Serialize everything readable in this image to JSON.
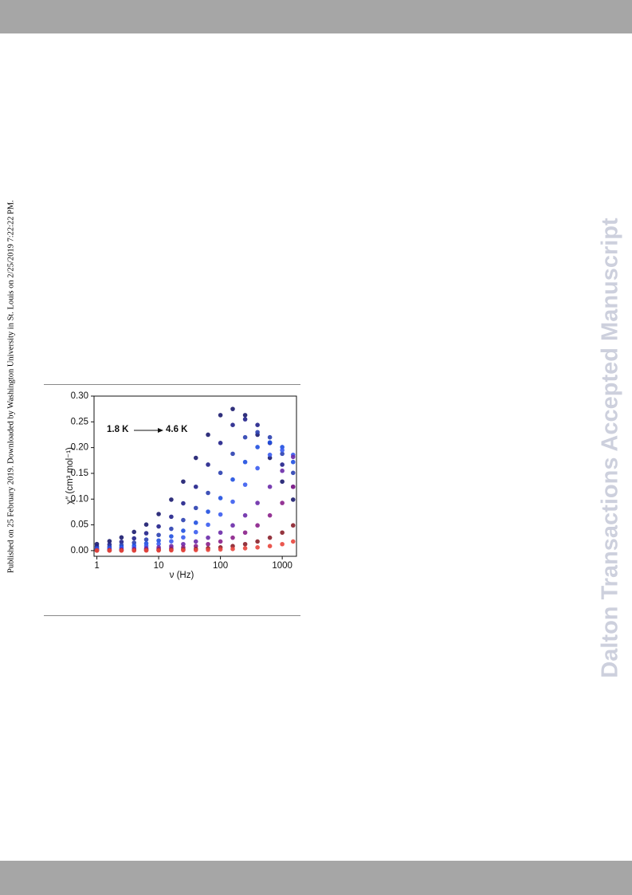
{
  "side_note": "Published on 25 February 2019. Downloaded by Washington University in St. Louis on 2/25/2019 7:22:22 PM.",
  "watermark": "Dalton Transactions Accepted Manuscript",
  "chart_data": {
    "type": "scatter",
    "xscale": "log",
    "x_label": "ν (Hz)",
    "y_label": "χ″ (cm³ mol⁻¹)",
    "annotation_start": "1.8 K",
    "annotation_end": "4.6 K",
    "annotation_start_color": "#1a1a7a",
    "annotation_end_color": "#e8553c",
    "xlim": [
      0.9,
      1700
    ],
    "xticks": [
      1,
      10,
      100,
      1000
    ],
    "ylim": [
      -0.011,
      0.3
    ],
    "yticks": [
      {
        "value": 0,
        "label": "0.00"
      },
      {
        "value": 0.05,
        "label": "0.05"
      },
      {
        "value": 0.1,
        "label": "0.10"
      },
      {
        "value": 0.15,
        "label": "0.15"
      },
      {
        "value": 0.2,
        "label": "0.20"
      },
      {
        "value": 0.25,
        "label": "0.25"
      },
      {
        "value": 0.3,
        "label": "0.30"
      }
    ],
    "x": [
      1,
      1.6,
      2.5,
      4,
      6.3,
      10,
      16,
      25,
      40,
      63,
      100,
      158,
      251,
      398,
      631,
      1000,
      1500
    ],
    "series": [
      {
        "color": "#1a1a6e",
        "values": [
          0.0128,
          0.0183,
          0.0256,
          0.0363,
          0.0506,
          0.071,
          0.099,
          0.134,
          0.18,
          0.225,
          0.263,
          0.275,
          0.263,
          0.225,
          0.18,
          0.134,
          0.099
        ]
      },
      {
        "color": "#20208a",
        "values": [
          0.0084,
          0.0119,
          0.017,
          0.0237,
          0.0337,
          0.0469,
          0.0658,
          0.0918,
          0.124,
          0.167,
          0.209,
          0.244,
          0.255,
          0.244,
          0.209,
          0.167,
          0.124
        ]
      },
      {
        "color": "#2a3fb0",
        "values": [
          0.0055,
          0.0076,
          0.0107,
          0.0153,
          0.0214,
          0.0304,
          0.0423,
          0.0593,
          0.0828,
          0.112,
          0.151,
          0.188,
          0.22,
          0.23,
          0.22,
          0.188,
          0.151
        ]
      },
      {
        "color": "#1f4fe0",
        "values": [
          0.0036,
          0.005,
          0.0069,
          0.0098,
          0.014,
          0.0195,
          0.0277,
          0.0386,
          0.0542,
          0.0756,
          0.102,
          0.138,
          0.172,
          0.201,
          0.21,
          0.201,
          0.172
        ]
      },
      {
        "color": "#3a5cf0",
        "values": [
          0.0023,
          0.0033,
          0.0047,
          0.0064,
          0.0091,
          0.013,
          0.0181,
          0.0257,
          0.0359,
          0.0503,
          0.0702,
          0.095,
          0.128,
          0.16,
          0.186,
          0.195,
          0.186
        ]
      },
      {
        "color": "#6a2aa8",
        "values": [
          0.0011,
          0.0016,
          0.0023,
          0.0032,
          0.0046,
          0.0063,
          0.0088,
          0.0126,
          0.0177,
          0.0251,
          0.035,
          0.049,
          0.0684,
          0.0925,
          0.124,
          0.155,
          0.182
        ]
      },
      {
        "color": "#8a1f8a",
        "values": [
          0.0006,
          0.0008,
          0.0011,
          0.0016,
          0.0023,
          0.0032,
          0.0046,
          0.0063,
          0.0088,
          0.0126,
          0.0177,
          0.0251,
          0.035,
          0.049,
          0.0684,
          0.0925,
          0.124
        ]
      },
      {
        "color": "#8a1f2a",
        "values": [
          0.0002,
          0.0003,
          0.0004,
          0.0006,
          0.0008,
          0.0011,
          0.0016,
          0.0023,
          0.0032,
          0.0046,
          0.0063,
          0.0088,
          0.0126,
          0.0177,
          0.0251,
          0.035,
          0.049
        ]
      },
      {
        "color": "#e8453c",
        "values": [
          0.0001,
          0.0001,
          0.0001,
          0.0002,
          0.0003,
          0.0004,
          0.0006,
          0.0008,
          0.0011,
          0.0016,
          0.0023,
          0.0032,
          0.0046,
          0.0063,
          0.0088,
          0.0126,
          0.0177
        ]
      }
    ]
  }
}
